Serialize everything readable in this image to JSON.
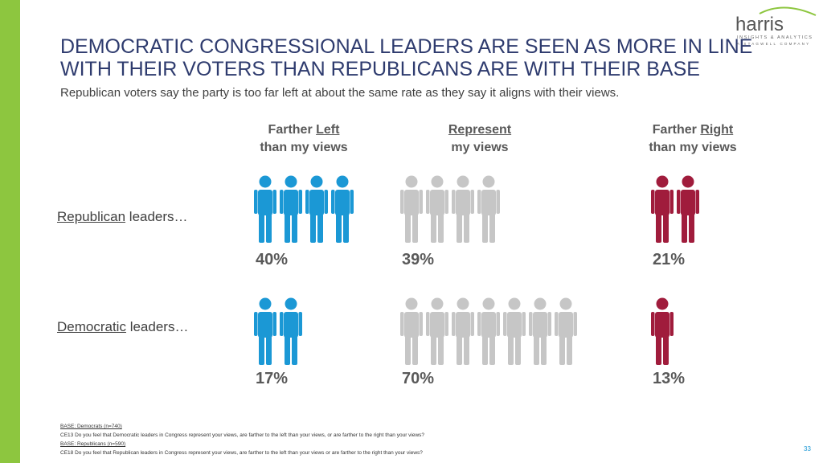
{
  "chart_data": {
    "type": "pictogram",
    "title": [
      "DEMOCRATIC CONGRESSIONAL LEADERS ARE SEEN AS MORE IN LINE",
      "WITH THEIR VOTERS THAN REPUBLICANS ARE WITH THEIR BASE"
    ],
    "subtitle": "Republican voters say the party is too far left at about the same rate as they say it aligns with their views.",
    "columns": [
      {
        "before": "Farther ",
        "underlined": "Left",
        "line2": "than my views"
      },
      {
        "underlined": "Represent",
        "line2": "my views"
      },
      {
        "before": "Farther ",
        "underlined": "Right",
        "line2": "than my views"
      }
    ],
    "categories": [
      {
        "underlined": "Republican",
        "rest": " leaders…"
      },
      {
        "underlined": "Democratic",
        "rest": " leaders…"
      }
    ],
    "series": [
      {
        "color": "#1b98d5",
        "values": [
          40,
          17
        ],
        "value_labels": [
          "40%",
          "17%"
        ]
      },
      {
        "color": "#c6c6c6",
        "values": [
          39,
          70
        ],
        "value_labels": [
          "39%",
          "70%"
        ]
      },
      {
        "color": "#a01c3c",
        "values": [
          21,
          13
        ],
        "value_labels": [
          "21%",
          "13%"
        ]
      }
    ],
    "footnotes": [
      "BASE: Democrats (n=740)",
      "CE13 Do you feel that Democratic leaders in Congress represent your views, are farther to the left than your views, or are farther to the right than your views?",
      "BASE: Republicans (n=590)",
      "CE18 Do you feel that Republican leaders in Congress represent your views, are farther to the left than your views or are farther to the right than your views?"
    ],
    "page_number": "33",
    "logo": {
      "name": "harris",
      "line1": "INSIGHTS & ANALYTICS",
      "line2": "A STAGWELL COMPANY"
    }
  }
}
